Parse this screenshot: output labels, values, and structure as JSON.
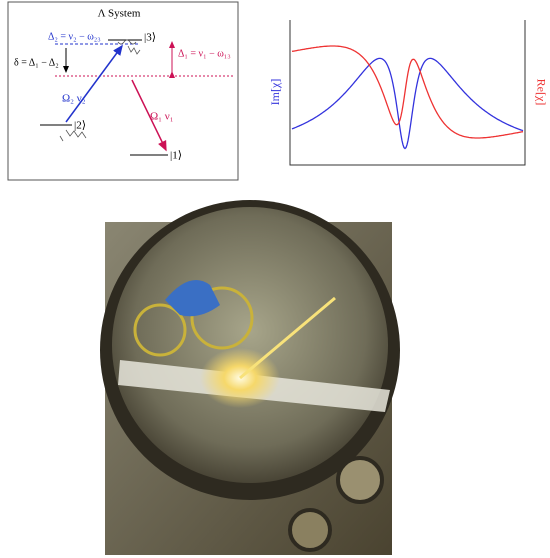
{
  "lambda_diagram": {
    "title": "Λ System",
    "detuning2": "Δ₂ = ν₂ − ω₂₃",
    "level3": "|3⟩",
    "detuning1": "Δ₁ = ν₁ − ω₁₃",
    "two_photon": "δ = Δ₁ − Δ₂",
    "field2": "Ω₂   ν₂",
    "level2": "|2⟩",
    "field1": "Ω₁   ν₁",
    "level1": "|1⟩"
  },
  "susceptibility_plot": {
    "left_axis_label": "Im[χ]",
    "right_axis_label": "Re[χ]"
  }
}
